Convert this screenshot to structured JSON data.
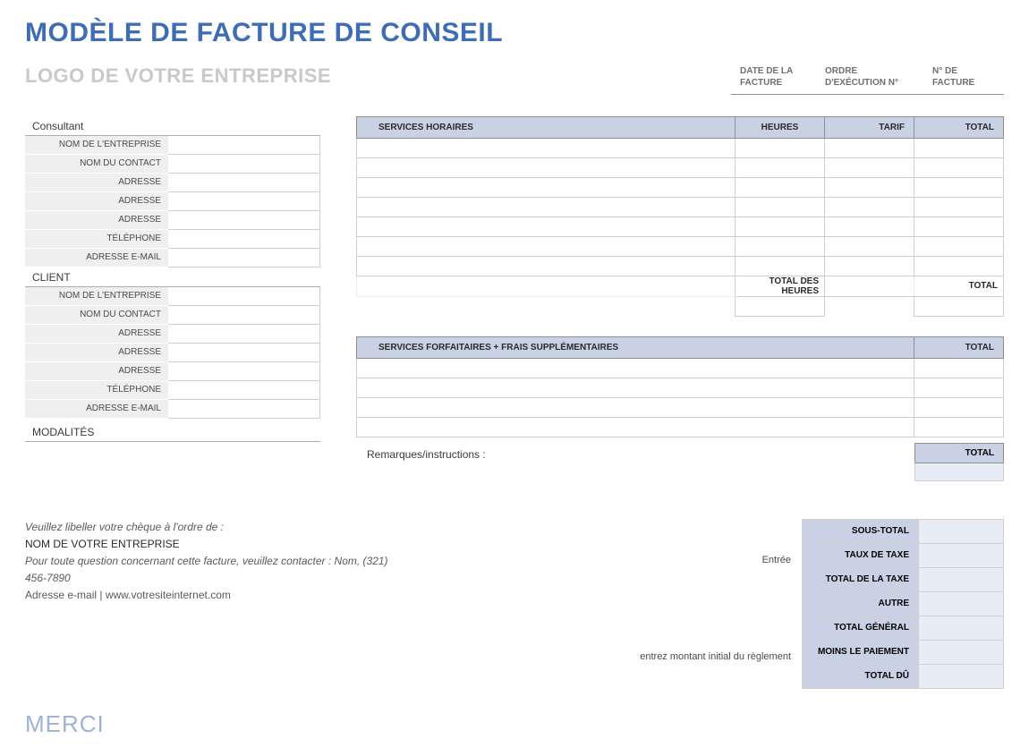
{
  "title": "MODÈLE DE FACTURE DE CONSEIL",
  "logo_placeholder": "LOGO DE VOTRE ENTREPRISE",
  "meta": {
    "invoice_date_label": "DATE DE LA FACTURE",
    "work_order_label": "ORDRE D'EXÉCUTION N°",
    "invoice_no_label": "N° DE FACTURE",
    "invoice_date": "",
    "work_order": "",
    "invoice_no": ""
  },
  "consultant": {
    "section": "Consultant",
    "labels": {
      "company": "NOM DE L'ENTREPRISE",
      "contact": "NOM DU CONTACT",
      "address1": "ADRESSE",
      "address2": "ADRESSE",
      "address3": "ADRESSE",
      "phone": "TÉLÉPHONE",
      "email": "ADRESSE E-MAIL"
    },
    "values": {
      "company": "",
      "contact": "",
      "address1": "",
      "address2": "",
      "address3": "",
      "phone": "",
      "email": ""
    }
  },
  "client": {
    "section": "CLIENT",
    "labels": {
      "company": "NOM DE L'ENTREPRISE",
      "contact": "NOM DU CONTACT",
      "address1": "ADRESSE",
      "address2": "ADRESSE",
      "address3": "ADRESSE",
      "phone": "TÉLÉPHONE",
      "email": "ADRESSE E-MAIL"
    },
    "values": {
      "company": "",
      "contact": "",
      "address1": "",
      "address2": "",
      "address3": "",
      "phone": "",
      "email": ""
    }
  },
  "terms": {
    "section": "MODALITÉS"
  },
  "hourly": {
    "headers": {
      "service": "SERVICES HORAIRES",
      "hours": "HEURES",
      "rate": "TARIF",
      "total": "TOTAL"
    },
    "row_count": 7,
    "totals_label_hours": "TOTAL DES HEURES",
    "totals_label_total": "TOTAL",
    "total_hours": "",
    "total_amount": ""
  },
  "fixed": {
    "headers": {
      "service": "SERVICES FORFAITAIRES + FRAIS SUPPLÉMENTAIRES",
      "total": "TOTAL"
    },
    "row_count": 4
  },
  "remarks": {
    "label": "Remarques/instructions :",
    "total_header": "TOTAL",
    "total_value": ""
  },
  "hints": {
    "entry": "Entrée",
    "payment": "entrez montant initial du règlement"
  },
  "summary": {
    "subtotal": {
      "label": "SOUS-TOTAL",
      "value": ""
    },
    "tax_rate": {
      "label": "TAUX DE TAXE",
      "value": ""
    },
    "tax_total": {
      "label": "TOTAL DE LA TAXE",
      "value": ""
    },
    "other": {
      "label": "AUTRE",
      "value": ""
    },
    "grand_total": {
      "label": "TOTAL GÉNÉRAL",
      "value": ""
    },
    "less_payment": {
      "label": "MOINS LE PAIEMENT",
      "value": ""
    },
    "total_due": {
      "label": "TOTAL DÛ",
      "value": ""
    }
  },
  "footer": {
    "cheque_line": "Veuillez libeller votre chèque à l'ordre de :",
    "company_name": "NOM DE VOTRE ENTREPRISE",
    "contact_line": "Pour toute question concernant cette facture, veuillez contacter : Nom, (321) 456-7890",
    "email_line": "Adresse e-mail | www.votresiteinternet.com"
  },
  "thanks": "MERCI",
  "style": {
    "title_color": "#3e6db5",
    "header_bg": "#c9d2e4",
    "value_bg": "#e7ecf5",
    "label_bg": "#efefef",
    "border_color": "#cfcfcf",
    "logo_color": "#c9c9c9",
    "merci_color": "#9fb3d4"
  }
}
